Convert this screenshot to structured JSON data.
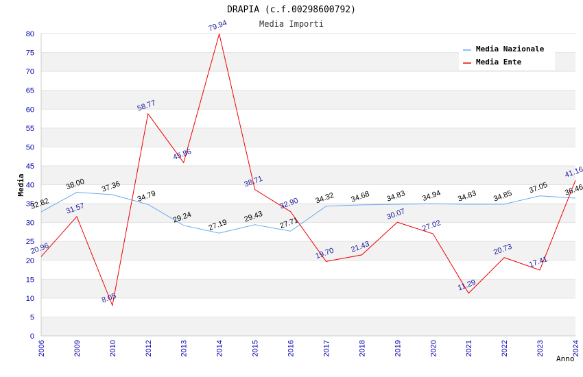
{
  "chart_data": {
    "type": "line",
    "title": "DRAPIA (c.f.00298600792)",
    "subtitle": "Media Importi",
    "xlabel": "Anno",
    "ylabel": "Media",
    "categories": [
      "2006",
      "2009",
      "2010",
      "2012",
      "2013",
      "2014",
      "2015",
      "2016",
      "2017",
      "2018",
      "2019",
      "2020",
      "2021",
      "2022",
      "2023",
      "2024"
    ],
    "ylim": [
      0,
      80
    ],
    "yticks": [
      0,
      5,
      10,
      15,
      20,
      25,
      30,
      35,
      40,
      45,
      50,
      55,
      60,
      65,
      70,
      75,
      80
    ],
    "grid": true,
    "legend_position": "top-right",
    "series": [
      {
        "name": "Media Nazionale",
        "color": "#66aaee",
        "values": [
          32.82,
          38.0,
          37.36,
          34.79,
          29.24,
          27.19,
          29.43,
          27.71,
          34.32,
          34.68,
          34.83,
          34.94,
          34.83,
          34.85,
          37.05,
          36.46
        ]
      },
      {
        "name": "Media Ente",
        "color": "#ee0000",
        "values": [
          20.96,
          31.57,
          8.05,
          58.77,
          45.86,
          79.94,
          38.71,
          32.9,
          19.7,
          21.43,
          30.07,
          27.02,
          11.29,
          20.73,
          17.41,
          41.16
        ]
      }
    ]
  }
}
